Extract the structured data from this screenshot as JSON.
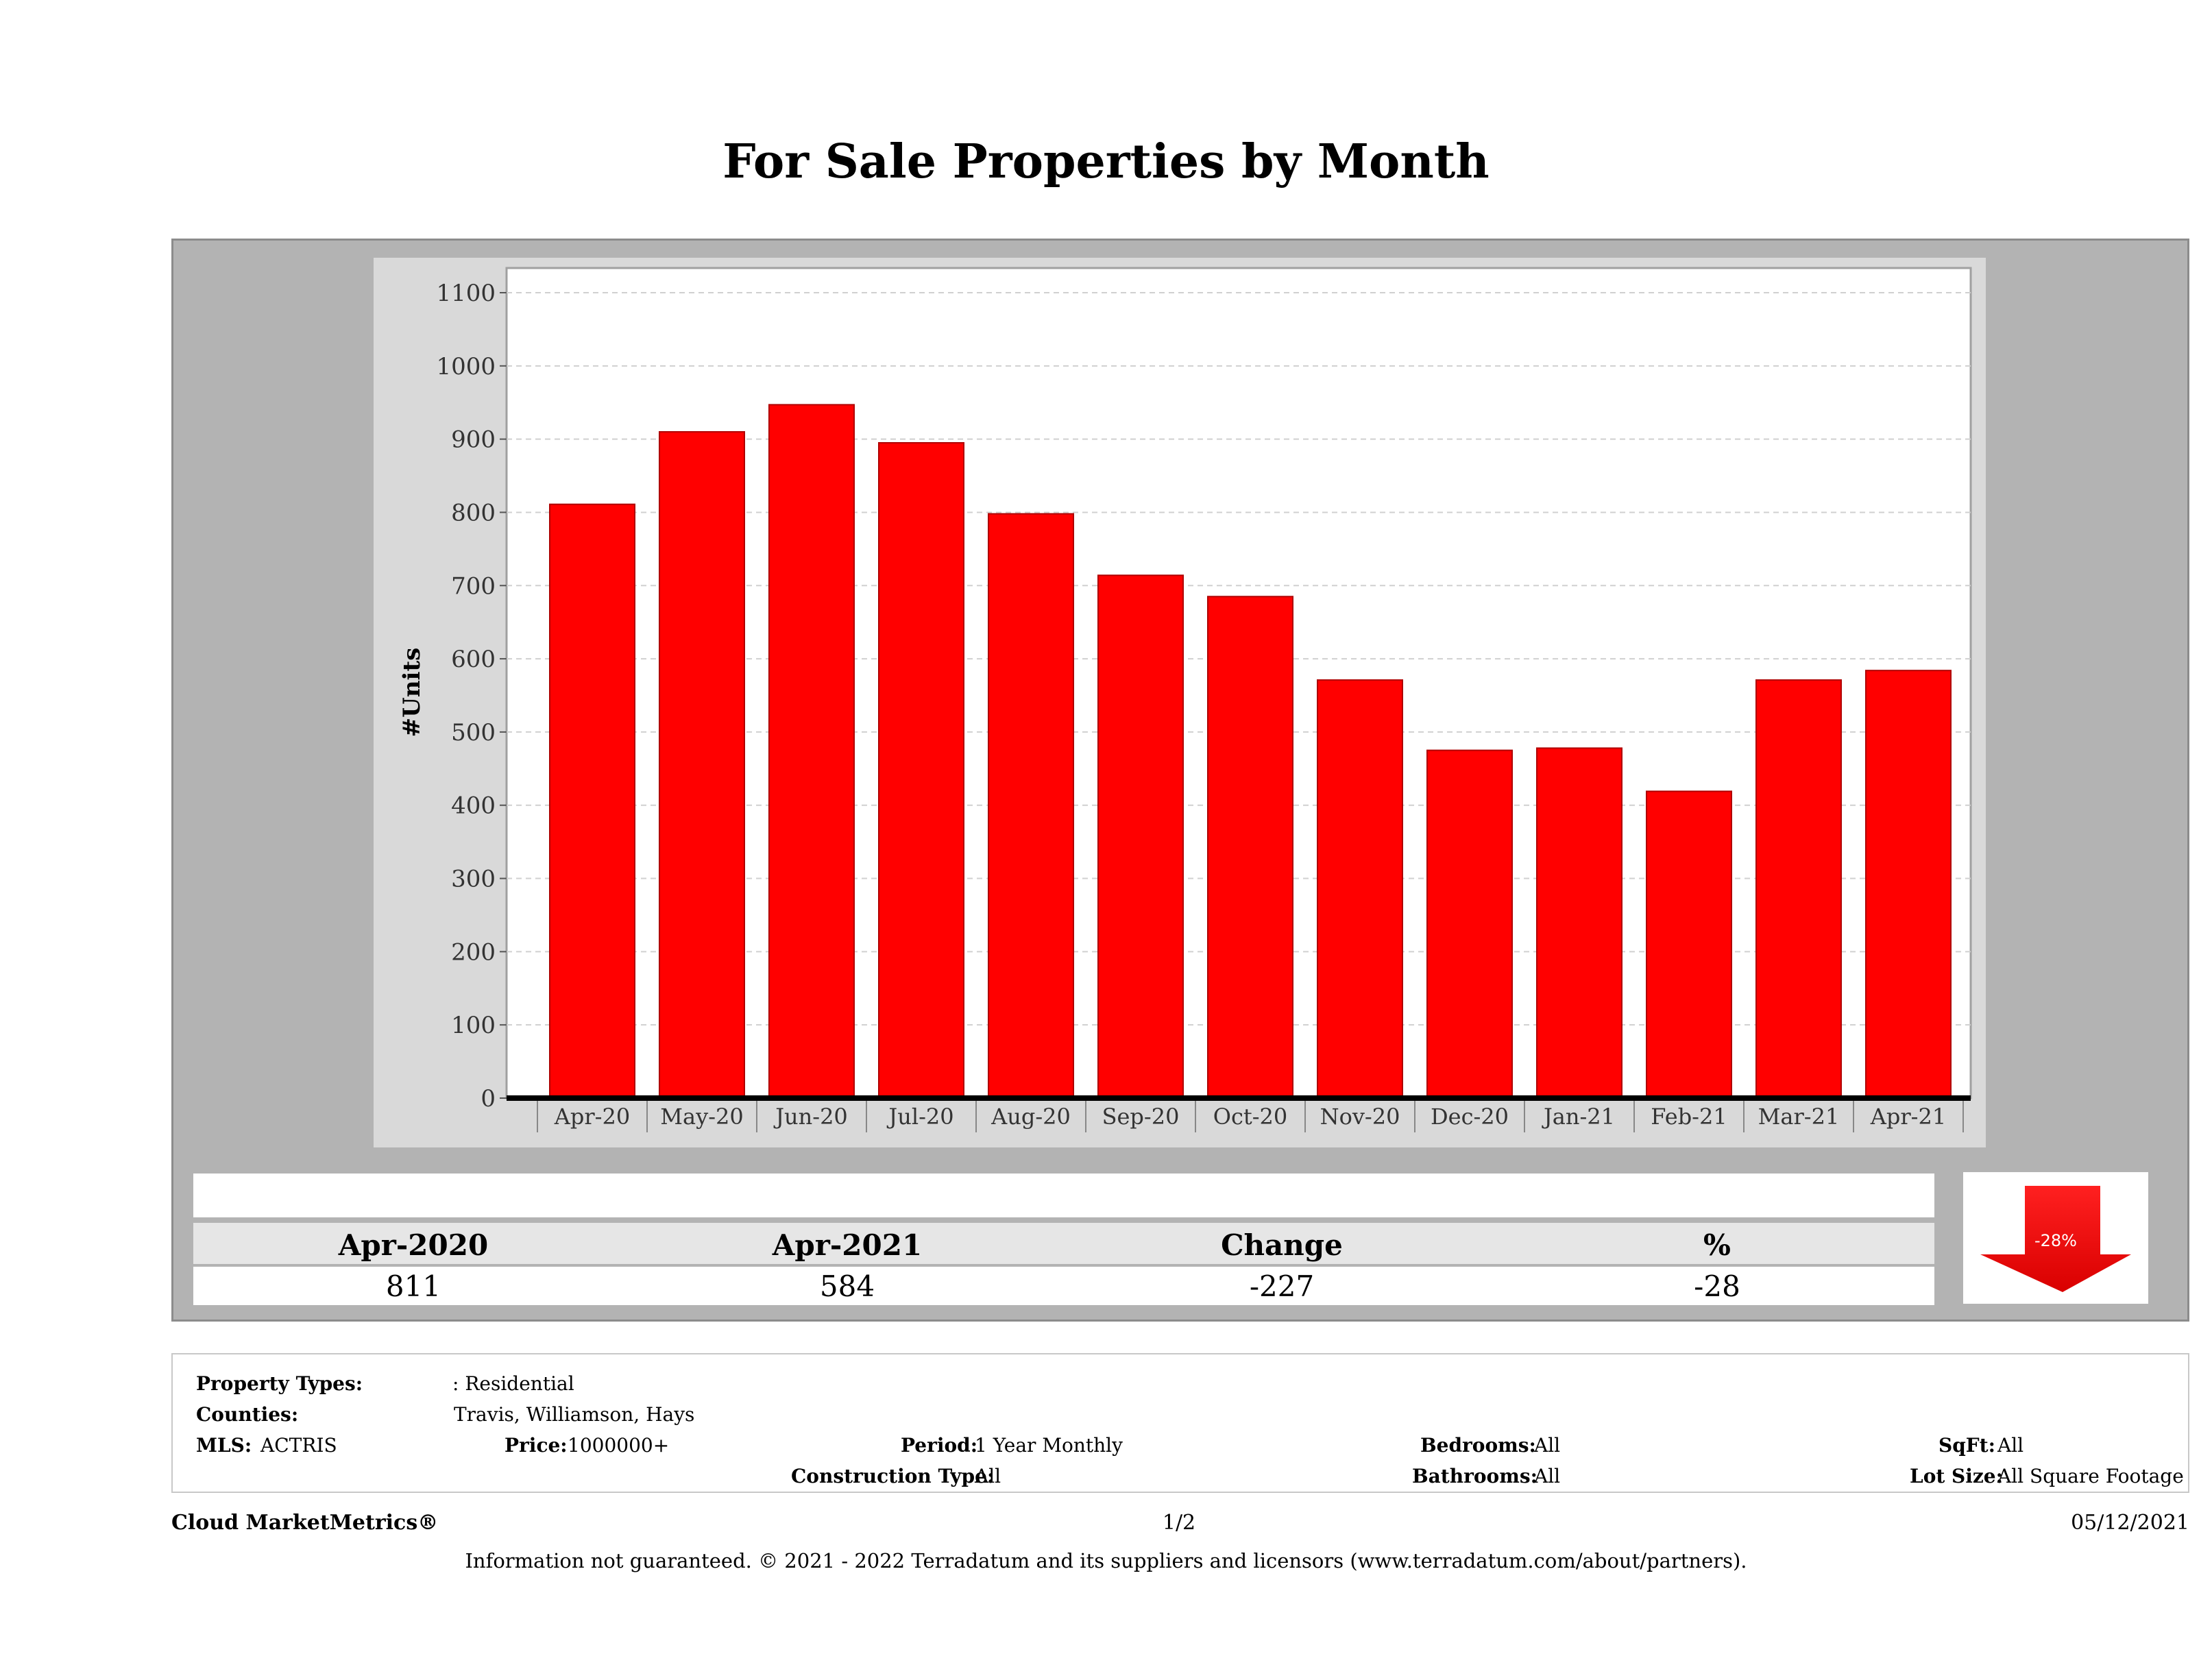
{
  "title": "For Sale Properties by Month",
  "chart_data": {
    "type": "bar",
    "title": "For Sale Properties by Month",
    "ylabel": "#Units",
    "xlabel": "",
    "categories": [
      "Apr-20",
      "May-20",
      "Jun-20",
      "Jul-20",
      "Aug-20",
      "Sep-20",
      "Oct-20",
      "Nov-20",
      "Dec-20",
      "Jan-21",
      "Feb-21",
      "Mar-21",
      "Apr-21"
    ],
    "values": [
      811,
      910,
      947,
      895,
      798,
      714,
      685,
      571,
      475,
      478,
      419,
      571,
      584
    ],
    "ylim": [
      0,
      1100
    ],
    "yticks": [
      0,
      100,
      200,
      300,
      400,
      500,
      600,
      700,
      800,
      900,
      1000,
      1100
    ],
    "bar_color": "#ff0000",
    "grid": true
  },
  "summary": {
    "headers": [
      "Apr-2020",
      "Apr-2021",
      "Change",
      "%"
    ],
    "values": [
      "811",
      "584",
      "-227",
      "-28"
    ],
    "badge": "-28%",
    "badge_color": "#ff0000"
  },
  "filters": {
    "property_types_label": "Property Types:",
    "property_types_value": ": Residential",
    "counties_label": "Counties:",
    "counties_value": "Travis, Williamson, Hays",
    "mls_label": "MLS:",
    "mls_value": "ACTRIS",
    "price_label": "Price:",
    "price_value": "1000000+",
    "period_label": "Period:",
    "period_value": "1 Year Monthly",
    "construction_label": "Construction Type:",
    "construction_value": "All",
    "bedrooms_label": "Bedrooms:",
    "bedrooms_value": "All",
    "bathrooms_label": "Bathrooms:",
    "bathrooms_value": "All",
    "sqft_label": "SqFt:",
    "sqft_value": "All",
    "lot_label": "Lot Size:",
    "lot_value": "All Square Footage"
  },
  "footer": {
    "brand": "Cloud MarketMetrics®",
    "page": "1/2",
    "date": "05/12/2021",
    "disclaimer": "Information not guaranteed. © 2021 - 2022 Terradatum and its suppliers and licensors (www.terradatum.com/about/partners)."
  }
}
